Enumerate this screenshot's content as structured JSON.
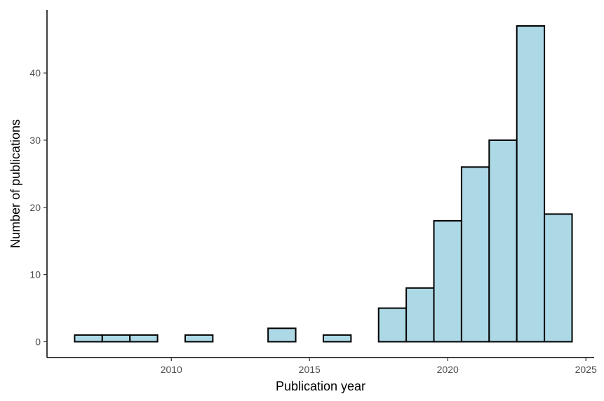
{
  "chart_data": {
    "type": "bar",
    "title": "",
    "xlabel": "Publication year",
    "ylabel": "Number of publications",
    "categories": [
      2007,
      2008,
      2009,
      2010,
      2011,
      2012,
      2013,
      2014,
      2015,
      2016,
      2017,
      2018,
      2019,
      2020,
      2021,
      2022,
      2023,
      2024
    ],
    "values": [
      1,
      1,
      1,
      0,
      1,
      0,
      0,
      2,
      0,
      1,
      0,
      5,
      8,
      18,
      26,
      30,
      47,
      19
    ],
    "xlim": [
      2005.5,
      2025.3
    ],
    "ylim": [
      -2.35,
      49.4
    ],
    "xticks": [
      2010,
      2015,
      2020,
      2025
    ],
    "yticks": [
      0,
      10,
      20,
      30,
      40
    ],
    "grid": false,
    "legend": "none",
    "bar_fill": "#add8e6",
    "bar_stroke": "#000000"
  }
}
